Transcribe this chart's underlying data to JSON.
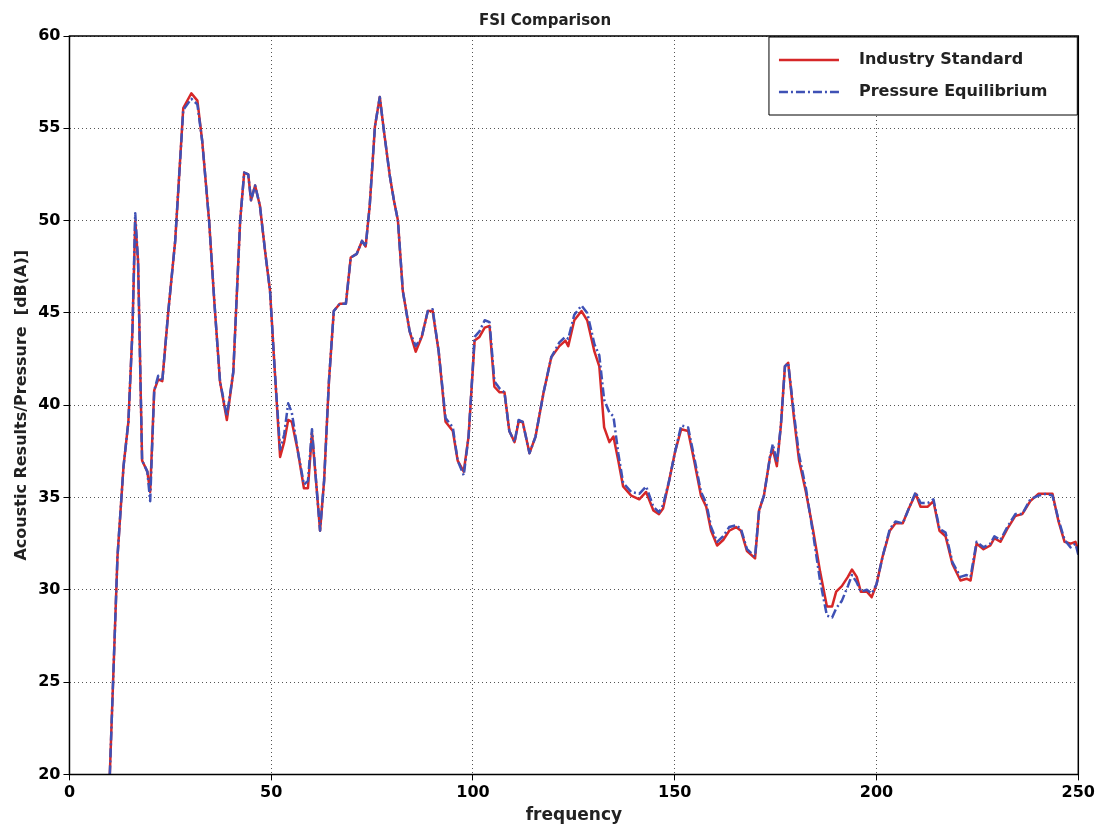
{
  "chart_data": {
    "type": "line",
    "title": "FSI Comparison",
    "xlabel": "frequency",
    "ylabel": "Acoustic Results/Pressure  [dB(A)]",
    "xlim": [
      0,
      250
    ],
    "xticks": [
      0,
      50,
      100,
      150,
      200,
      250
    ],
    "ylim": [
      20,
      60
    ],
    "yticks": [
      20,
      25,
      30,
      35,
      40,
      45,
      50,
      55,
      60
    ],
    "grid": true,
    "legend": "top right",
    "marker": "none",
    "x": [
      10,
      11.9,
      13.4,
      14.6,
      15.6,
      16.3,
      17,
      18,
      19.3,
      20,
      21,
      22,
      23,
      24.5,
      26.2,
      28.2,
      30.2,
      31.7,
      32.9,
      34.6,
      35.9,
      37.3,
      39,
      40.6,
      42.3,
      43.3,
      44.3,
      45,
      46,
      47.2,
      48.5,
      49.7,
      50.9,
      52.2,
      53.2,
      54.2,
      55.1,
      56.6,
      58.1,
      59.1,
      60.1,
      61.1,
      62.1,
      63.1,
      64.3,
      65.5,
      67,
      68.5,
      69.7,
      71.2,
      72.5,
      73.4,
      74.4,
      75.7,
      76.9,
      77.9,
      79.4,
      80.4,
      81.4,
      82.6,
      84.3,
      85.8,
      87.3,
      88.8,
      90,
      91.5,
      93.2,
      95,
      96.2,
      97.7,
      98.9,
      100.4,
      101.6,
      102.9,
      104.1,
      105.3,
      106.6,
      107.8,
      109,
      110.3,
      111.3,
      112.3,
      114,
      115.5,
      117.5,
      119.4,
      121.4,
      122.9,
      123.6,
      125.1,
      126.9,
      128.3,
      130.1,
      131.3,
      132.5,
      133.8,
      134.8,
      136,
      137.2,
      139.2,
      141.2,
      142.9,
      144.7,
      146.1,
      147.1,
      148.6,
      150.1,
      151.6,
      153.3,
      154.8,
      156.5,
      157.8,
      159,
      160.5,
      162,
      163.5,
      165.2,
      166.4,
      167.9,
      169.9,
      170.9,
      172.1,
      173.6,
      174.3,
      175.3,
      176.3,
      177.3,
      178.1,
      179.5,
      180.8,
      182.5,
      184.3,
      186,
      187.7,
      189,
      190,
      191.4,
      192.9,
      193.9,
      195.1,
      196.1,
      197.6,
      198.8,
      200,
      201.5,
      203.3,
      204.7,
      206.5,
      208,
      209.7,
      210.9,
      212.7,
      214.1,
      215.6,
      217.1,
      218.8,
      220.8,
      222.3,
      223.3,
      224.8,
      226.5,
      228.2,
      229.2,
      230.7,
      232.4,
      234.4,
      236.1,
      238.1,
      240.1,
      242.1,
      243.6,
      245.1,
      246.6,
      248.1,
      249.3,
      250
    ],
    "series": [
      {
        "name": "Industry Standard",
        "color": "#d62728",
        "line_style": "solid",
        "values": [
          20,
          31.8,
          36.7,
          39.1,
          44,
          50,
          47.8,
          37,
          36.4,
          35.3,
          40.8,
          41.4,
          41.3,
          45.1,
          48.9,
          56.1,
          56.9,
          56.5,
          54.3,
          50,
          45.6,
          41.3,
          39.2,
          41.8,
          50,
          52.6,
          52.5,
          51.1,
          51.9,
          50.8,
          48.3,
          46.2,
          41.8,
          37.2,
          38,
          39.2,
          39.1,
          37.5,
          35.5,
          35.5,
          38.5,
          35.9,
          33.2,
          35.9,
          41.3,
          45.1,
          45.5,
          45.5,
          48,
          48.2,
          48.9,
          48.6,
          50.8,
          55.1,
          56.7,
          54.9,
          52.4,
          51.1,
          50,
          46.2,
          44,
          42.9,
          43.7,
          45.1,
          45.1,
          42.9,
          39.1,
          38.6,
          37,
          36.4,
          38.3,
          43.5,
          43.7,
          44.2,
          44.3,
          41,
          40.7,
          40.7,
          38.6,
          38,
          39.1,
          39.1,
          37.4,
          38.3,
          40.7,
          42.6,
          43.2,
          43.5,
          43.2,
          44.6,
          45.1,
          44.6,
          42.9,
          42.1,
          38.8,
          38,
          38.3,
          37,
          35.6,
          35.1,
          34.9,
          35.3,
          34.3,
          34.1,
          34.4,
          35.9,
          37.5,
          38.7,
          38.6,
          37,
          35.1,
          34.5,
          33.2,
          32.4,
          32.7,
          33.2,
          33.4,
          33.2,
          32.1,
          31.7,
          34.3,
          35.1,
          37.2,
          37.6,
          36.7,
          38.9,
          42.1,
          42.3,
          39.4,
          37,
          35.3,
          33.2,
          31,
          29.1,
          29.1,
          29.9,
          30.2,
          30.7,
          31.1,
          30.7,
          29.9,
          29.9,
          29.6,
          30.3,
          31.8,
          33.2,
          33.6,
          33.6,
          34.4,
          35.2,
          34.5,
          34.5,
          34.8,
          33.2,
          32.9,
          31.4,
          30.5,
          30.6,
          30.5,
          32.5,
          32.2,
          32.4,
          32.8,
          32.6,
          33.3,
          34,
          34.1,
          34.8,
          35.2,
          35.2,
          35.2,
          33.7,
          32.6,
          32.5,
          32.6,
          32.1
        ]
      },
      {
        "name": "Pressure Equilibrium",
        "color": "#3f51b5",
        "line_style": "dashed",
        "values": [
          20,
          31.8,
          36.7,
          39.1,
          44,
          50.4,
          47.8,
          37,
          36.4,
          34.8,
          40.8,
          41.6,
          41.3,
          45.1,
          48.9,
          56,
          56.6,
          56.3,
          54.3,
          50,
          45.6,
          41.3,
          39.4,
          41.8,
          50,
          52.6,
          52.5,
          51.1,
          51.9,
          50.8,
          48.3,
          46.2,
          41.8,
          37.6,
          38.4,
          40.1,
          39.6,
          37.5,
          35.7,
          35.9,
          38.7,
          35.9,
          33.2,
          35.9,
          41.3,
          45.1,
          45.5,
          45.5,
          48,
          48.2,
          48.9,
          48.6,
          50.8,
          55.1,
          56.7,
          54.9,
          52.4,
          51.1,
          50,
          46.2,
          44,
          43.2,
          43.7,
          45.1,
          45.2,
          42.9,
          39.3,
          38.8,
          37,
          36.2,
          38.3,
          43.7,
          44,
          44.6,
          44.5,
          41.3,
          40.9,
          40.7,
          38.6,
          38,
          39.2,
          39.1,
          37.4,
          38.3,
          40.7,
          42.6,
          43.4,
          43.7,
          43.6,
          44.9,
          45.4,
          45,
          43.3,
          42.7,
          40.3,
          39.6,
          39.4,
          37.4,
          35.8,
          35.3,
          35.2,
          35.6,
          34.5,
          34.2,
          34.6,
          35.9,
          37.5,
          38.9,
          38.8,
          37.2,
          35.3,
          34.7,
          33.4,
          32.6,
          32.9,
          33.4,
          33.5,
          33.3,
          32.2,
          31.8,
          34.3,
          35.1,
          37.2,
          37.9,
          36.9,
          38.9,
          42.1,
          42.3,
          39.6,
          37.3,
          35.5,
          33,
          30.5,
          28.6,
          28.5,
          29,
          29.4,
          30.2,
          30.8,
          30.4,
          29.9,
          30,
          29.8,
          30.3,
          31.8,
          33.3,
          33.7,
          33.6,
          34.4,
          35.3,
          34.7,
          34.7,
          34.9,
          33.3,
          33.1,
          31.5,
          30.7,
          30.8,
          30.7,
          32.6,
          32.3,
          32.5,
          32.9,
          32.7,
          33.4,
          34.1,
          34.1,
          34.9,
          35.1,
          35.2,
          35.1,
          33.8,
          32.7,
          32.3,
          32.5,
          31.9
        ]
      }
    ]
  }
}
